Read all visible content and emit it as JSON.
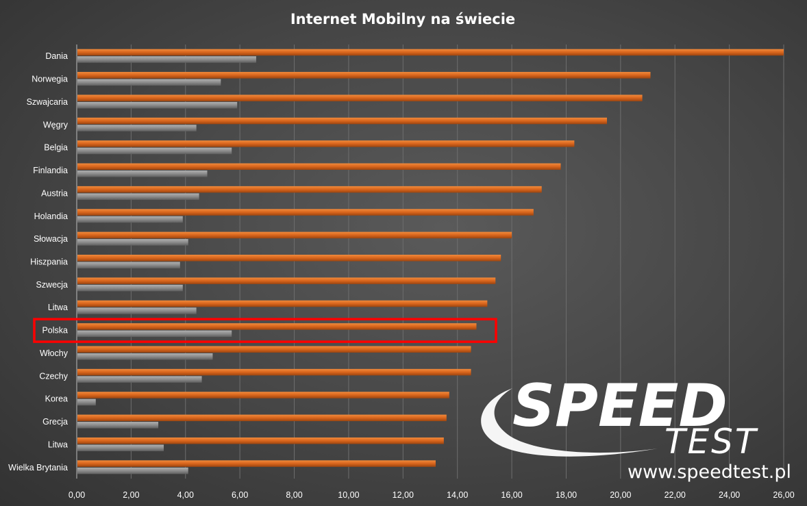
{
  "chart_data": {
    "type": "bar",
    "orientation": "horizontal",
    "title": "Internet Mobilny na świecie",
    "categories": [
      "Dania",
      "Norwegia",
      "Szwajcaria",
      "Węgry",
      "Belgia",
      "Finlandia",
      "Austria",
      "Holandia",
      "Słowacja",
      "Hiszpania",
      "Szwecja",
      "Litwa",
      "Polska",
      "Włochy",
      "Czechy",
      "Korea",
      "Grecja",
      "Litwa",
      "Wielka Brytania"
    ],
    "series": [
      {
        "values": [
          26.0,
          21.1,
          20.8,
          19.5,
          18.3,
          17.8,
          17.1,
          16.8,
          16.0,
          15.6,
          15.4,
          15.1,
          14.7,
          14.5,
          14.5,
          13.7,
          13.6,
          13.5,
          13.2
        ],
        "color": "#d9651c"
      },
      {
        "values": [
          6.6,
          5.3,
          5.9,
          4.4,
          5.7,
          4.8,
          4.5,
          3.9,
          4.1,
          3.8,
          3.9,
          4.4,
          5.7,
          5.0,
          4.6,
          0.7,
          3.0,
          3.2,
          4.1
        ],
        "color": "#8c8c8c"
      }
    ],
    "xlim": [
      0,
      26
    ],
    "x_ticks": [
      "0,00",
      "2,00",
      "4,00",
      "6,00",
      "8,00",
      "10,00",
      "12,00",
      "14,00",
      "16,00",
      "18,00",
      "20,00",
      "22,00",
      "24,00",
      "26,00"
    ],
    "grid": true,
    "highlight": {
      "category": "Polska",
      "color": "#ff0000"
    }
  },
  "logo": {
    "main": "SPEED",
    "sub": "TEST",
    "url": "www.speedtest.pl"
  }
}
